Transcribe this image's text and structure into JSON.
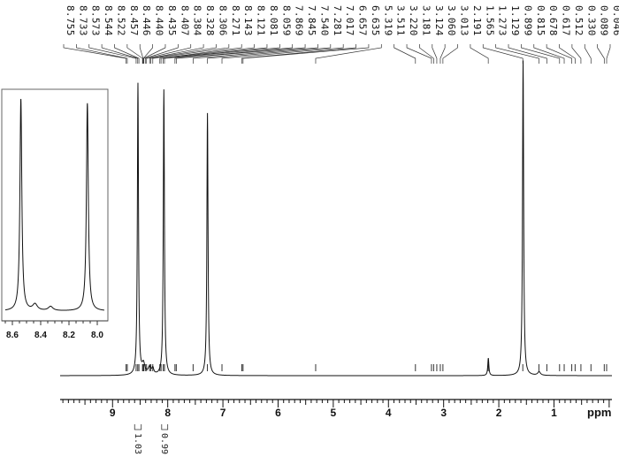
{
  "chart_data": [
    {
      "type": "line",
      "title": "",
      "xlabel": "ppm",
      "ylabel": "",
      "xlim": [
        9.95,
        -0.05
      ],
      "x_reversed": true,
      "x_ticks": [
        "9",
        "8",
        "7",
        "6",
        "5",
        "4",
        "3",
        "2",
        "1"
      ],
      "peak_labels": [
        "8.755",
        "8.733",
        "8.573",
        "8.544",
        "8.522",
        "8.457",
        "8.446",
        "8.440",
        "8.435",
        "8.407",
        "8.384",
        "8.328",
        "8.306",
        "8.271",
        "8.143",
        "8.121",
        "8.081",
        "8.059",
        "7.869",
        "7.845",
        "7.540",
        "7.281",
        "7.017",
        "6.657",
        "6.635",
        "5.319",
        "3.511",
        "3.220",
        "3.181",
        "3.124",
        "3.060",
        "3.013",
        "2.191",
        "1.565",
        "1.273",
        "1.129",
        "0.899",
        "0.815",
        "0.678",
        "0.617",
        "0.512",
        "0.330",
        "0.089",
        "0.046"
      ],
      "major_peaks": [
        {
          "ppm": 8.54,
          "height": 1.0
        },
        {
          "ppm": 8.07,
          "height": 0.98
        },
        {
          "ppm": 7.28,
          "height": 0.9
        },
        {
          "ppm": 2.19,
          "height": 0.06
        },
        {
          "ppm": 1.56,
          "height": 1.08
        }
      ],
      "integrals": [
        {
          "ppm_from": 8.6,
          "ppm_to": 8.48,
          "value": "1.03"
        },
        {
          "ppm_from": 8.11,
          "ppm_to": 8.0,
          "value": "0.99"
        }
      ]
    },
    {
      "type": "line",
      "title": "inset",
      "xlim": [
        8.65,
        7.95
      ],
      "x_ticks": [
        "8.6",
        "8.4",
        "8.2",
        "8.0"
      ],
      "major_peaks": [
        {
          "ppm": 8.54,
          "height": 1.0
        },
        {
          "ppm": 8.07,
          "height": 0.98
        }
      ]
    }
  ]
}
